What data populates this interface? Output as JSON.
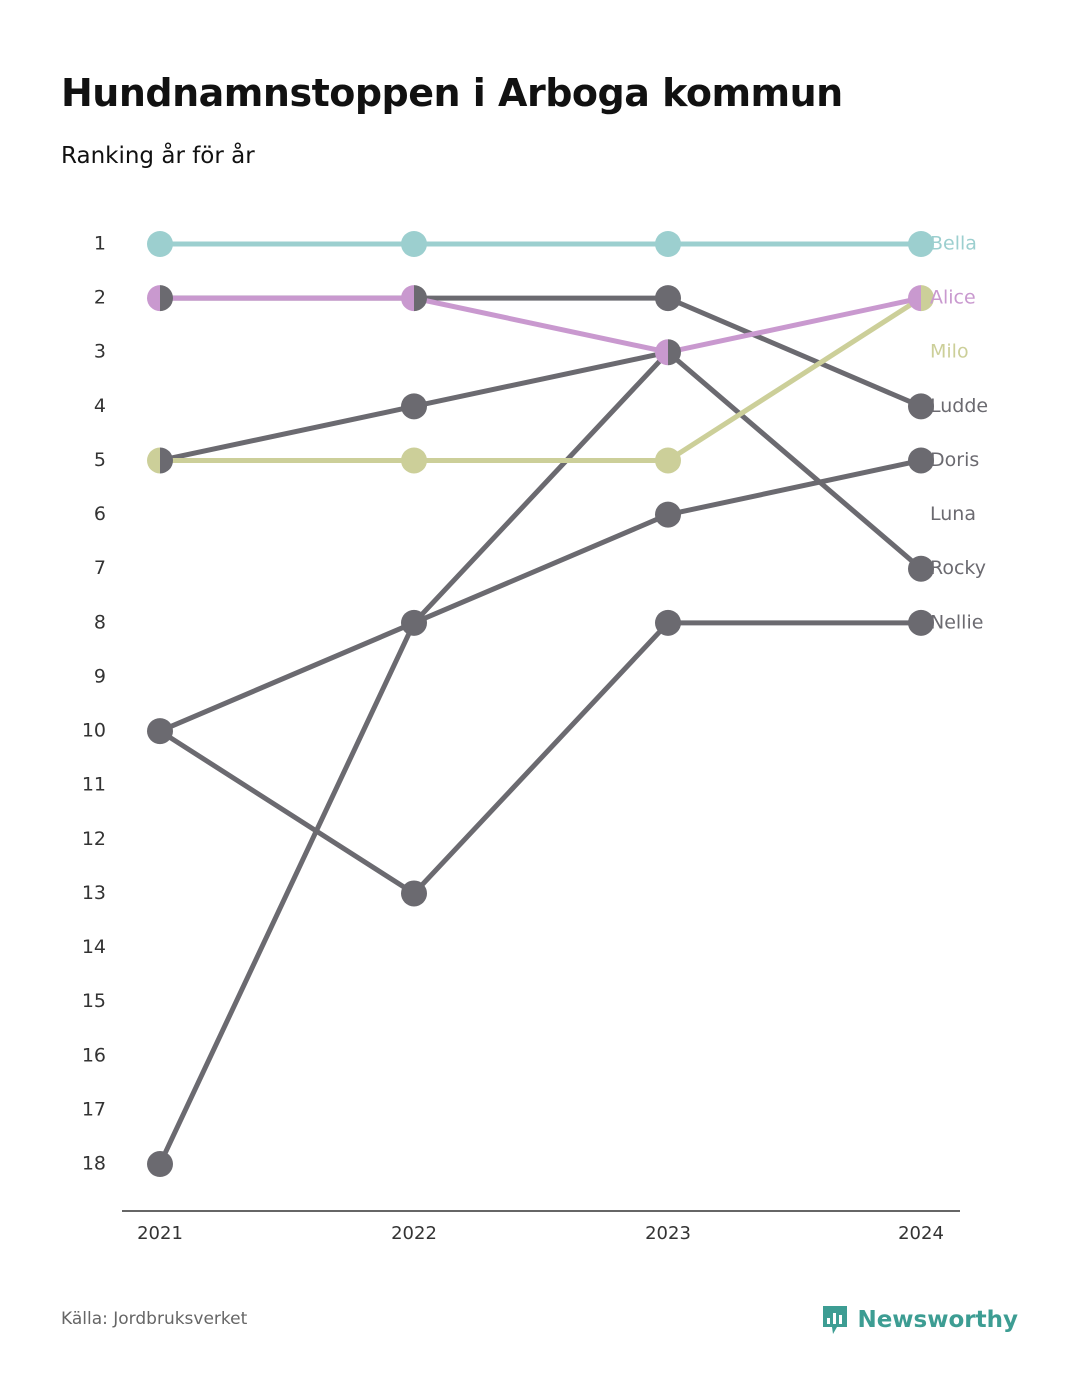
{
  "header": {
    "title": "Hundnamnstoppen i Arboga kommun",
    "subtitle": "Ranking år för år"
  },
  "footer": {
    "source": "Källa: Jordbruksverket",
    "brand": "Newsworthy",
    "brand_icon": "newsworthy-logo-icon",
    "brand_color": "#3d9d93"
  },
  "chart_data": {
    "type": "line",
    "subtype": "bump",
    "title": "Hundnamnstoppen i Arboga kommun",
    "subtitle": "Ranking år för år",
    "x": [
      "2021",
      "2022",
      "2023",
      "2024"
    ],
    "y_ticks": [
      1,
      2,
      3,
      4,
      5,
      6,
      7,
      8,
      9,
      10,
      11,
      12,
      13,
      14,
      15,
      16,
      17,
      18
    ],
    "ylim": [
      1,
      18
    ],
    "y_inverted": true,
    "grid": false,
    "legend": "none (series labels at right end)",
    "series": [
      {
        "name": "Bella",
        "color": "#9ccfcf",
        "values": [
          1,
          1,
          1,
          1
        ]
      },
      {
        "name": "Alice",
        "color": "#c999cf",
        "values": [
          2,
          2,
          3,
          2
        ]
      },
      {
        "name": "Milo",
        "color": "#cccf99",
        "values": [
          5,
          5,
          5,
          2
        ]
      },
      {
        "name": "Ludde",
        "color": "#6b6a70",
        "values": [
          2,
          2,
          2,
          4
        ]
      },
      {
        "name": "Doris",
        "color": "#6b6a70",
        "values": [
          10,
          8,
          6,
          5
        ]
      },
      {
        "name": "Luna",
        "color": "#6b6a70",
        "values": [
          5,
          4,
          3,
          null
        ]
      },
      {
        "name": "Rocky",
        "color": "#6b6a70",
        "values": [
          18,
          8,
          3,
          7
        ]
      },
      {
        "name": "Nellie",
        "color": "#6b6a70",
        "values": [
          10,
          13,
          8,
          8
        ]
      }
    ]
  }
}
